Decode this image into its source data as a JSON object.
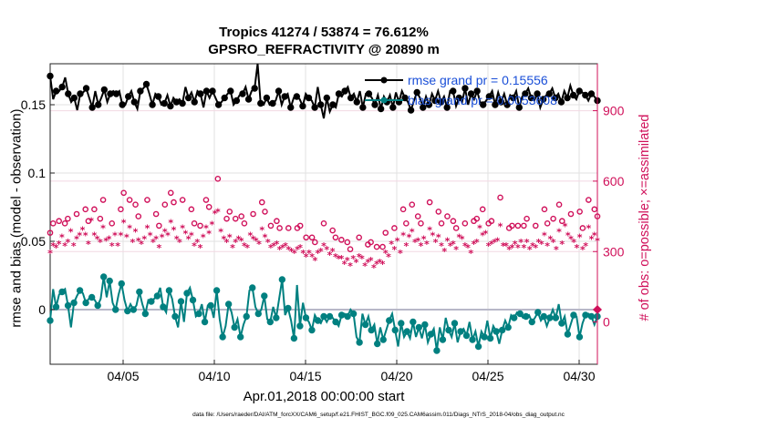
{
  "chart_data": {
    "type": "line",
    "title_line1": "Tropics 41274 / 53874 = 76.612%",
    "title_line2": "GPSRO_REFRACTIVITY @ 20890 m",
    "xlabel": "Apr.01,2018 00:00:00 start",
    "ylabel_left": "rmse and bias (model - observation)",
    "ylabel_right": "# of obs: o=possible; ×=assimilated",
    "footnote": "data file: /Users/raeder/DAI/ATM_forcXX/CAM6_setup/f.e21.FHIST_BGC.f09_025.CAM6assim.011/Diags_NTrS_2018-04/obs_diag_output.nc",
    "x_range": [
      1,
      31
    ],
    "x_ticks": [
      5,
      10,
      15,
      20,
      25,
      30
    ],
    "x_tick_labels": [
      "04/05",
      "04/10",
      "04/15",
      "04/20",
      "04/25",
      "04/30"
    ],
    "ylim_left": [
      -0.04,
      0.18
    ],
    "y_ticks_left": [
      0,
      0.05,
      0.1,
      0.15
    ],
    "y_tick_labels_left": [
      "0",
      "0.05",
      "0.1",
      "0.15"
    ],
    "ylim_right": [
      -180,
      1100
    ],
    "y_ticks_right": [
      0,
      300,
      600,
      900
    ],
    "y_tick_labels_right": [
      "0",
      "300",
      "600",
      "900"
    ],
    "legend": [
      {
        "label": "rmse grand pr = 0.15556",
        "color": "#000000"
      },
      {
        "label": "bias grand pr = 0.0053608",
        "color": "#008080"
      }
    ],
    "colors": {
      "rmse": "#000000",
      "bias": "#008080",
      "obs": "#d0105a",
      "zero_line": "#b8b8c8"
    },
    "rmse": [
      0.171,
      0.154,
      0.16,
      0.16,
      0.163,
      0.17,
      0.158,
      0.152,
      0.155,
      0.146,
      0.158,
      0.159,
      0.162,
      0.155,
      0.148,
      0.16,
      0.15,
      0.155,
      0.161,
      0.152,
      0.158,
      0.16,
      0.158,
      0.16,
      0.15,
      0.15,
      0.156,
      0.16,
      0.152,
      0.147,
      0.16,
      0.162,
      0.165,
      0.158,
      0.15,
      0.158,
      0.156,
      0.15,
      0.151,
      0.157,
      0.149,
      0.155,
      0.152,
      0.154,
      0.151,
      0.163,
      0.155,
      0.159,
      0.152,
      0.16,
      0.158,
      0.148,
      0.16,
      0.155,
      0.16,
      0.155,
      0.15,
      0.152,
      0.155,
      0.158,
      0.16,
      0.15,
      0.153,
      0.157,
      0.158,
      0.163,
      0.154,
      0.16,
      0.162,
      0.18,
      0.151,
      0.15,
      0.155,
      0.15,
      0.151,
      0.153,
      0.16,
      0.15,
      0.156,
      0.158,
      0.148,
      0.155,
      0.156,
      0.154,
      0.149,
      0.158,
      0.155,
      0.153,
      0.148,
      0.163,
      0.15,
      0.14,
      0.155,
      0.145,
      0.15,
      0.148,
      0.158,
      0.156,
      0.16,
      0.163,
      0.155,
      0.158,
      0.152,
      0.16,
      0.148,
      0.158,
      0.158,
      0.155,
      0.15,
      0.157,
      0.147,
      0.156,
      0.152,
      0.157,
      0.148,
      0.159,
      0.152,
      0.16,
      0.155,
      0.152,
      0.146,
      0.153,
      0.159,
      0.155,
      0.148,
      0.156,
      0.15,
      0.158,
      0.153,
      0.16,
      0.152,
      0.156,
      0.148,
      0.16,
      0.16,
      0.149,
      0.155,
      0.152,
      0.162,
      0.15,
      0.158,
      0.154,
      0.16,
      0.152,
      0.15,
      0.153,
      0.156,
      0.16,
      0.15,
      0.159,
      0.152,
      0.158,
      0.15,
      0.157,
      0.155,
      0.16,
      0.148,
      0.156,
      0.158,
      0.162,
      0.155,
      0.153,
      0.158,
      0.148,
      0.154,
      0.157,
      0.158,
      0.162,
      0.155,
      0.158,
      0.152,
      0.16,
      0.155,
      0.164,
      0.157,
      0.154,
      0.16,
      0.159,
      0.157,
      0.153,
      0.158,
      0.156,
      0.153
    ],
    "bias": [
      -0.008,
      0.015,
      0.002,
      0.011,
      0.013,
      0.015,
      0.003,
      -0.013,
      0.005,
      0.01,
      0.014,
      0.012,
      0.005,
      0.008,
      0.009,
      0.007,
      0.003,
      0.008,
      0.024,
      0.009,
      0.021,
      0.005,
      0.0,
      0.011,
      0.019,
      0.007,
      -0.001,
      0.004,
      0.0,
      0.003,
      0.013,
      0.004,
      -0.003,
      0.007,
      0.006,
      0.008,
      0.01,
      0.016,
      0.002,
      -0.002,
      0.014,
      0.008,
      -0.005,
      -0.013,
      0.006,
      -0.009,
      0.012,
      0.016,
      0.007,
      -0.005,
      -0.003,
      0.004,
      -0.009,
      0.003,
      0.003,
      -0.006,
      0.014,
      -0.007,
      -0.02,
      -0.012,
      0.004,
      -0.002,
      -0.013,
      -0.007,
      -0.02,
      -0.011,
      -0.005,
      0.014,
      0.016,
      0.002,
      -0.003,
      0.0,
      0.01,
      -0.007,
      -0.009,
      0.002,
      -0.006,
      0.008,
      0.022,
      -0.004,
      0.001,
      -0.008,
      -0.021,
      0.018,
      -0.012,
      0.005,
      -0.006,
      -0.009,
      -0.015,
      -0.004,
      -0.008,
      -0.01,
      -0.005,
      -0.009,
      -0.005,
      -0.006,
      -0.009,
      -0.012,
      -0.004,
      -0.003,
      -0.005,
      0.0,
      -0.003,
      -0.02,
      -0.024,
      -0.003,
      -0.011,
      -0.005,
      -0.015,
      -0.011,
      -0.025,
      -0.013,
      -0.022,
      -0.015,
      -0.008,
      -0.003,
      -0.015,
      -0.027,
      -0.01,
      -0.02,
      -0.016,
      -0.021,
      -0.009,
      -0.02,
      -0.013,
      -0.021,
      -0.011,
      -0.024,
      -0.018,
      -0.014,
      -0.03,
      -0.013,
      -0.022,
      -0.006,
      -0.015,
      -0.02,
      -0.01,
      -0.024,
      -0.016,
      -0.014,
      -0.019,
      -0.009,
      -0.022,
      -0.016,
      -0.027,
      -0.016,
      -0.02,
      -0.008,
      -0.021,
      -0.012,
      -0.016,
      -0.025,
      -0.015,
      -0.008,
      -0.013,
      -0.004,
      -0.006,
      -0.002,
      -0.003,
      -0.006,
      -0.005,
      -0.004,
      -0.009,
      -0.006,
      -0.002,
      -0.008,
      -0.005,
      -0.012,
      -0.006,
      0.0,
      -0.006,
      0.004,
      -0.01,
      -0.005,
      -0.018,
      -0.011,
      -0.004,
      -0.005,
      -0.02,
      -0.01,
      -0.004,
      -0.003,
      -0.005,
      -0.011,
      -0.005
    ],
    "obs_possible": [
      380,
      420,
      410,
      430,
      470,
      420,
      440,
      500,
      420,
      460,
      480,
      510,
      480,
      430,
      560,
      480,
      460,
      440,
      520,
      450,
      460,
      420,
      480,
      420,
      480,
      550,
      470,
      520,
      440,
      500,
      450,
      430,
      460,
      520,
      480,
      440,
      460,
      410,
      470,
      500,
      480,
      550,
      510,
      460,
      440,
      520,
      490,
      460,
      480,
      420,
      440,
      410,
      470,
      520,
      490,
      540,
      600,
      610,
      500,
      460,
      440,
      470,
      410,
      440,
      460,
      450,
      420,
      410,
      480,
      460,
      450,
      430,
      510,
      470,
      440,
      410,
      420,
      430,
      400,
      410,
      420,
      400,
      390,
      380,
      400,
      410,
      380,
      360,
      380,
      360,
      340,
      380,
      390,
      420,
      400,
      370,
      390,
      360,
      350,
      350,
      320,
      340,
      310,
      350,
      330,
      360,
      350,
      310,
      330,
      340,
      300,
      320,
      330,
      320,
      380,
      360,
      430,
      400,
      450,
      380,
      480,
      420,
      470,
      500,
      440,
      450,
      420,
      460,
      430,
      510,
      480,
      440,
      470,
      420,
      390,
      450,
      420,
      430,
      400,
      470,
      460,
      420,
      410,
      380,
      430,
      440,
      520,
      480,
      490,
      420,
      430,
      440,
      450,
      530,
      420,
      420,
      400,
      410,
      430,
      410,
      440,
      410,
      440,
      400,
      420,
      410,
      440,
      430,
      480,
      420,
      460,
      440,
      400,
      500,
      430,
      530,
      480,
      460,
      440,
      410,
      470,
      400,
      420,
      520,
      460,
      480,
      450
    ]
  }
}
